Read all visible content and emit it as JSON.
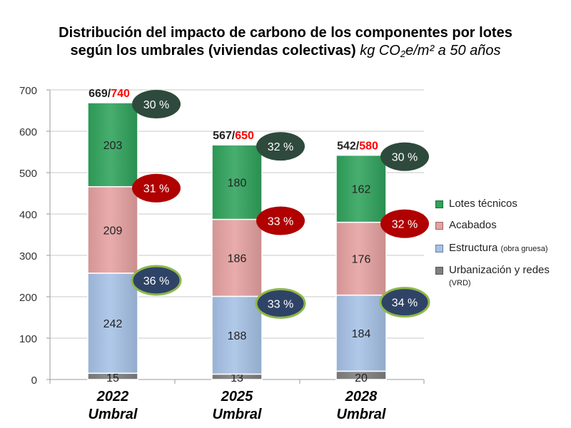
{
  "title": {
    "line1": "Distribución del impacto de carbono de los componentes por lotes",
    "line2_bold": "según los umbrales (viviendas colectivas)",
    "line2_unit_prefix": "kg CO",
    "line2_unit_sub": "2",
    "line2_unit_suffix": "e/m² a 50 años"
  },
  "chart_data": {
    "type": "bar",
    "stacked": true,
    "categories": [
      "2022\nUmbral",
      "2025\nUmbral",
      "2028\nUmbral"
    ],
    "category_year": [
      "2022",
      "2025",
      "2028"
    ],
    "category_sub": [
      "Umbral",
      "Umbral",
      "Umbral"
    ],
    "ylim": [
      0,
      700
    ],
    "yticks": [
      0,
      100,
      200,
      300,
      400,
      500,
      600,
      700
    ],
    "grid": true,
    "series": [
      {
        "name": "Urbanización y redes",
        "name_sub": "(VRD)",
        "color": "#7f7f7f",
        "values": [
          15,
          13,
          20
        ]
      },
      {
        "name": "Estructura",
        "name_sub": "(obra gruesa)",
        "color": "#a6c2e6",
        "values": [
          242,
          188,
          184
        ]
      },
      {
        "name": "Acabados",
        "name_sub": "",
        "color": "#e6a1a1",
        "values": [
          209,
          186,
          176
        ]
      },
      {
        "name": "Lotes técnicos",
        "name_sub": "",
        "color": "#2fa35b",
        "values": [
          203,
          180,
          162
        ]
      }
    ],
    "totals": [
      "669",
      "567",
      "542"
    ],
    "thresholds": [
      "740",
      "650",
      "580"
    ],
    "total_separator": "/",
    "percent_bubbles": {
      "Lotes técnicos": {
        "labels": [
          "30 %",
          "32 %",
          "30 %"
        ],
        "color": "#2e4a3c"
      },
      "Acabados": {
        "labels": [
          "31 %",
          "33 %",
          "32 %"
        ],
        "color": "#b00000"
      },
      "Estructura": {
        "labels": [
          "36 %",
          "33 %",
          "34 %"
        ],
        "color": "#2f4366"
      }
    },
    "legend_position": "right",
    "colors": {
      "threshold_text": "#ff0000",
      "axis": "#999999",
      "grid": "#c8c8c8",
      "bubble_border": "#8fb84a"
    }
  }
}
